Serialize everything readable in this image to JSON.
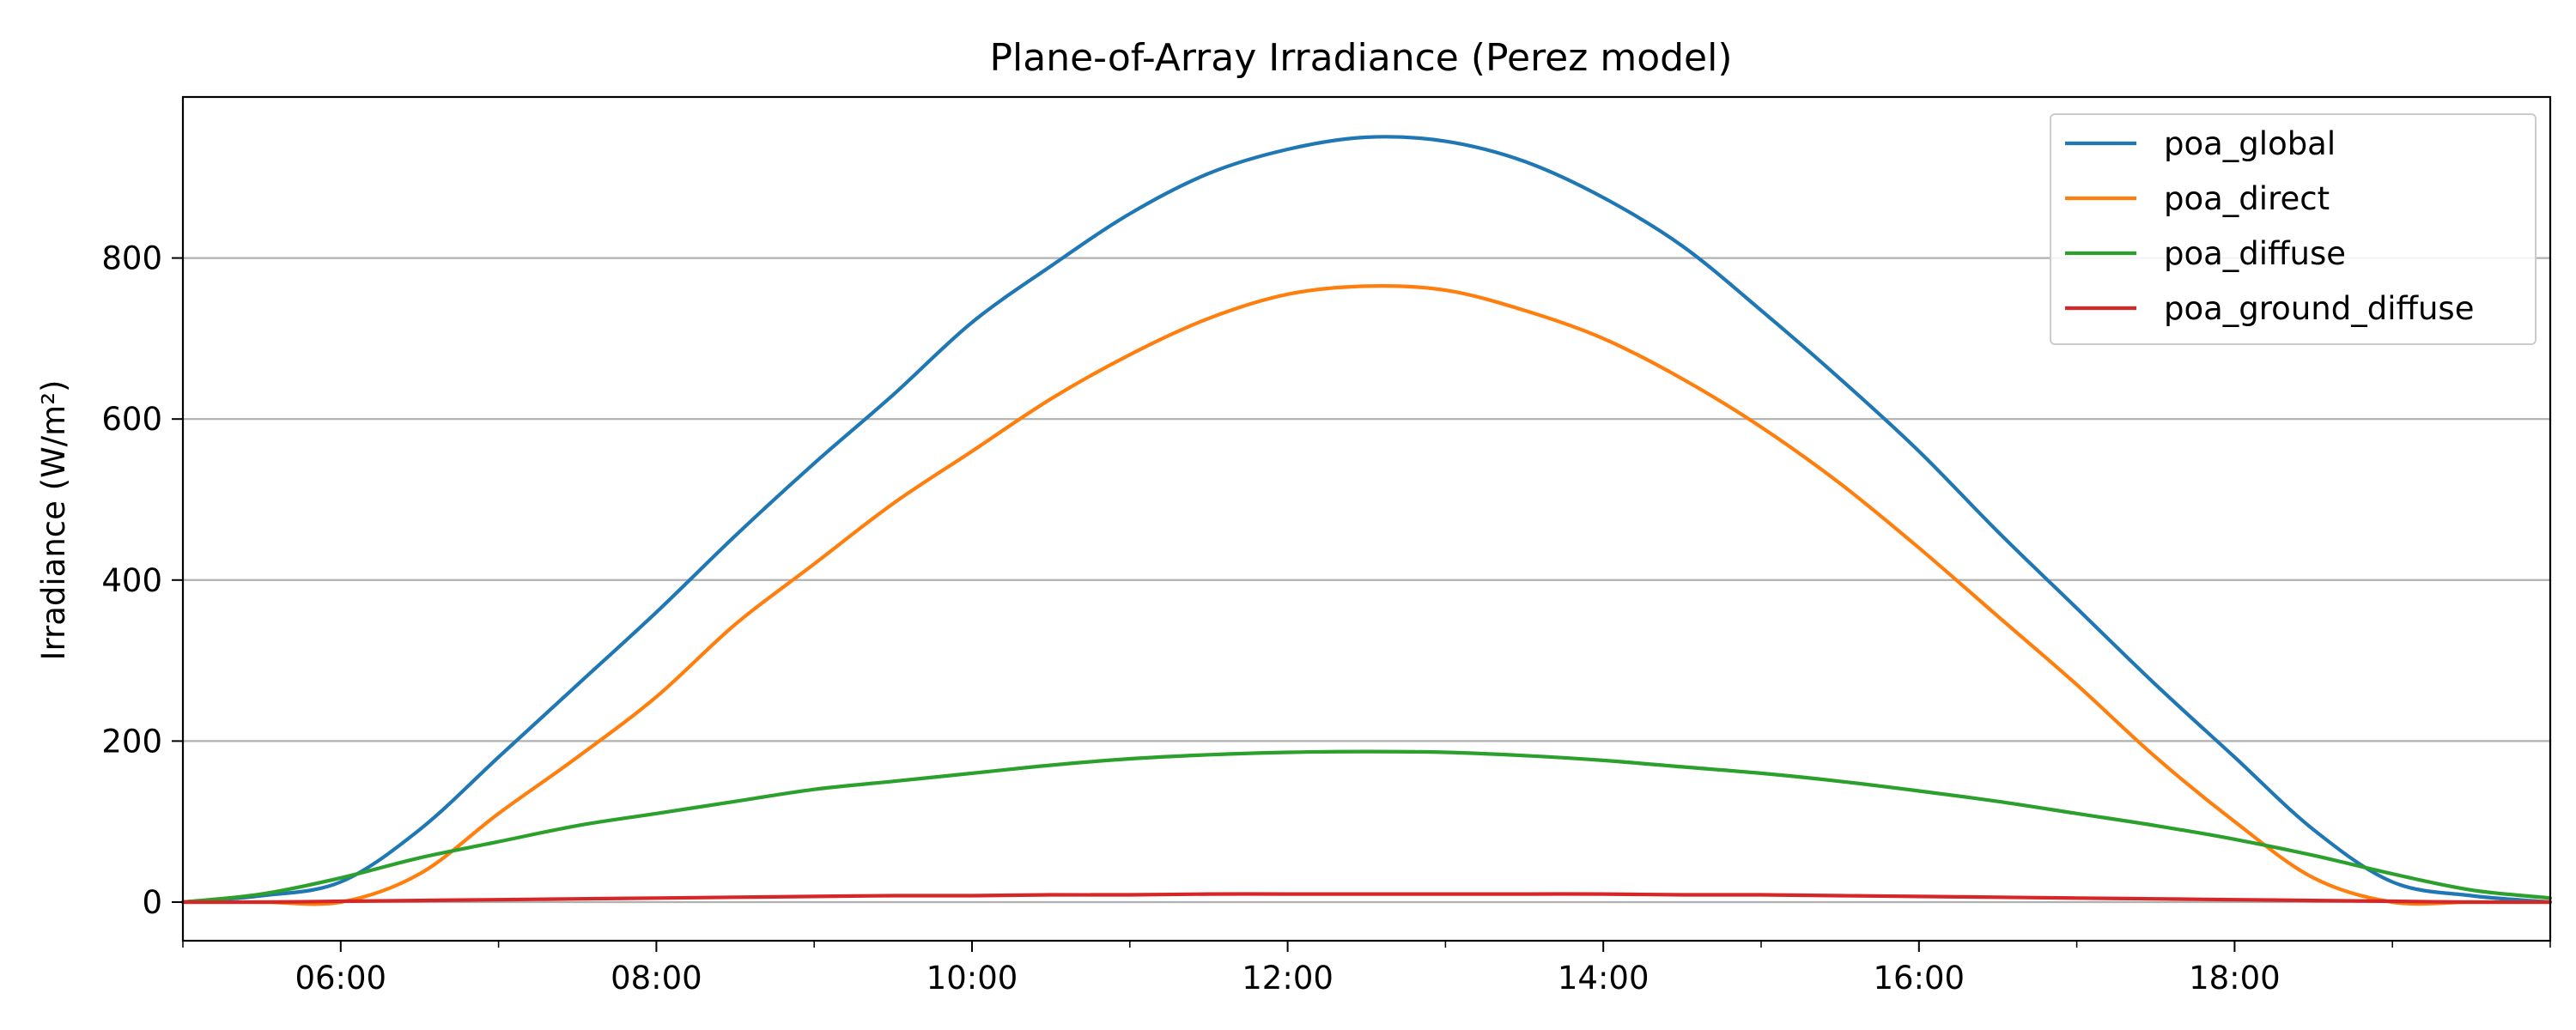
{
  "chart_data": {
    "type": "line",
    "title": "Plane-of-Array Irradiance (Perez model)",
    "xlabel": "",
    "ylabel": "Irradiance (W/m²)",
    "x_unit": "time of day (hours)",
    "xlim": [
      "05:00",
      "20:00"
    ],
    "ylim": [
      -48,
      1000
    ],
    "grid": "horizontal",
    "legend_position": "top-right",
    "x_ticks": [
      "06:00",
      "08:00",
      "10:00",
      "12:00",
      "14:00",
      "16:00",
      "18:00"
    ],
    "y_ticks": [
      0,
      200,
      400,
      600,
      800
    ],
    "x": [
      "05:00",
      "05:30",
      "06:00",
      "06:30",
      "07:00",
      "07:30",
      "08:00",
      "08:30",
      "09:00",
      "09:30",
      "10:00",
      "10:30",
      "11:00",
      "11:30",
      "12:00",
      "12:30",
      "13:00",
      "13:30",
      "14:00",
      "14:30",
      "15:00",
      "15:30",
      "16:00",
      "16:30",
      "17:00",
      "17:30",
      "18:00",
      "18:30",
      "19:00",
      "19:30",
      "20:00"
    ],
    "series": [
      {
        "name": "poa_global",
        "color": "#1f77b4",
        "values": [
          0,
          8,
          25,
          90,
          180,
          270,
          360,
          455,
          545,
          630,
          720,
          790,
          855,
          905,
          935,
          950,
          945,
          920,
          875,
          815,
          735,
          650,
          560,
          460,
          365,
          270,
          180,
          90,
          25,
          8,
          0
        ]
      },
      {
        "name": "poa_direct",
        "color": "#ff7f0e",
        "values": [
          0,
          0,
          0,
          35,
          110,
          180,
          255,
          345,
          420,
          495,
          560,
          625,
          680,
          725,
          755,
          765,
          760,
          735,
          700,
          650,
          590,
          520,
          440,
          355,
          270,
          180,
          100,
          30,
          0,
          0,
          0
        ]
      },
      {
        "name": "poa_diffuse",
        "color": "#2ca02c",
        "values": [
          0,
          10,
          30,
          55,
          75,
          95,
          110,
          125,
          140,
          150,
          160,
          170,
          178,
          183,
          186,
          187,
          186,
          182,
          176,
          168,
          160,
          150,
          138,
          125,
          110,
          95,
          78,
          58,
          35,
          15,
          5
        ]
      },
      {
        "name": "poa_ground_diffuse",
        "color": "#d62728",
        "values": [
          0,
          0,
          1,
          2,
          3,
          4,
          5,
          6,
          7,
          8,
          8,
          9,
          9,
          10,
          10,
          10,
          10,
          10,
          10,
          9,
          9,
          8,
          7,
          6,
          5,
          4,
          3,
          2,
          1,
          0,
          0
        ]
      }
    ]
  }
}
